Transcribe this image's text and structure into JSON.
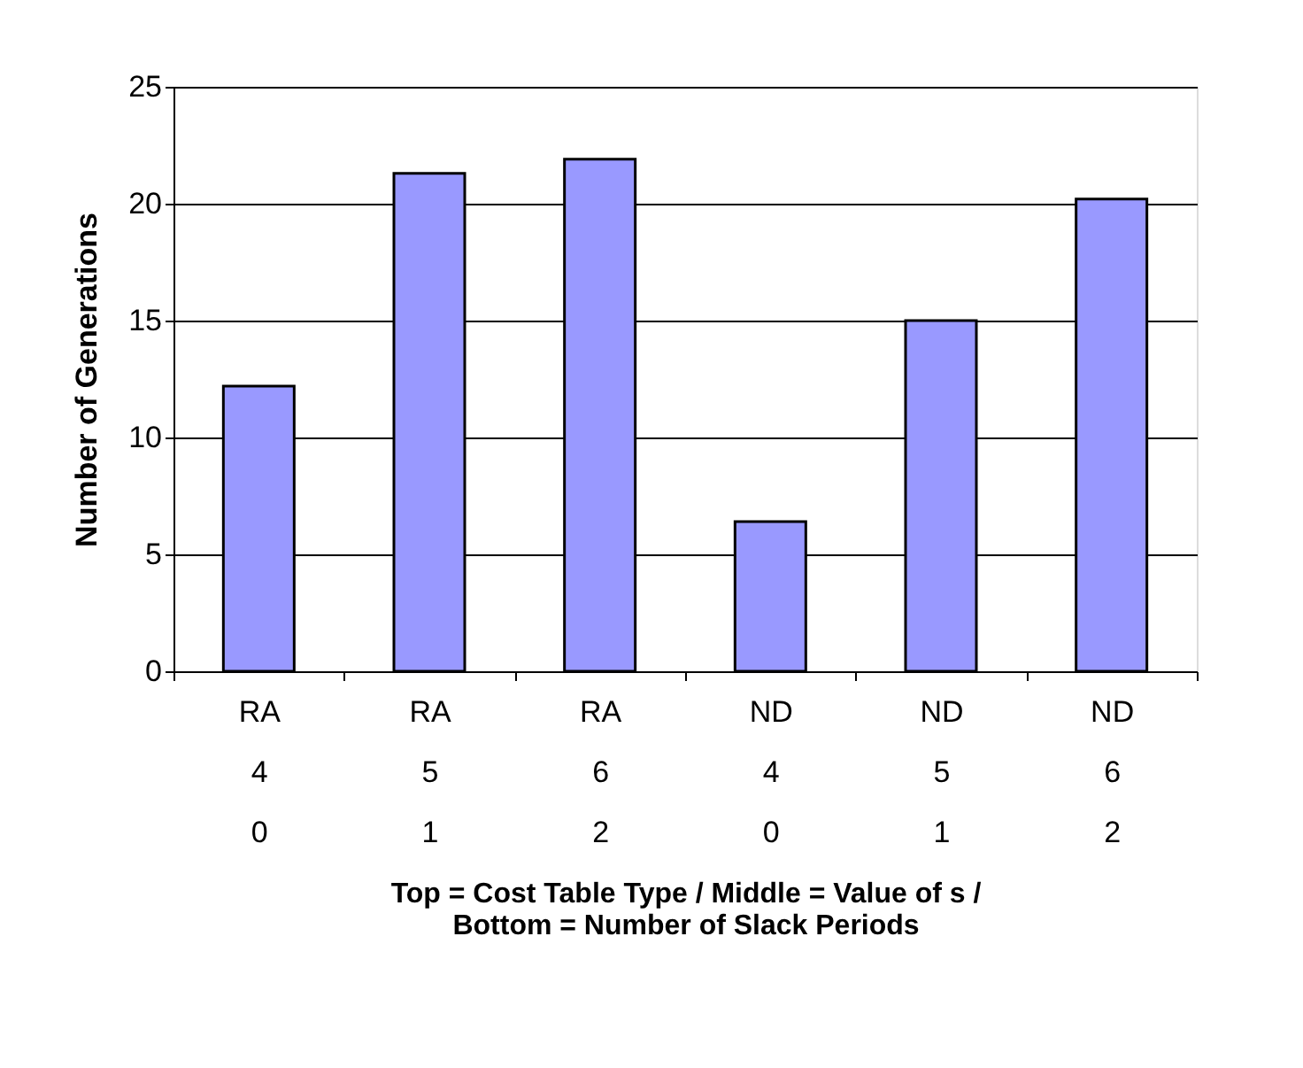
{
  "chart_data": {
    "type": "bar",
    "categories": [
      "RA\n4\n0",
      "RA\n5\n1",
      "RA\n6\n2",
      "ND\n4\n0",
      "ND\n5\n1",
      "ND\n6\n2"
    ],
    "values": [
      12.2,
      21.3,
      21.9,
      6.4,
      15.0,
      20.2
    ],
    "color": "#9999ff",
    "xlabel": "Top = Cost Table Type / Middle = Value of s / Bottom = Number of Slack Periods",
    "ylabel": "Number of Generations",
    "ylim": [
      0,
      25
    ],
    "yticks": [
      0,
      5,
      10,
      15,
      20,
      25
    ],
    "grid": "y"
  }
}
